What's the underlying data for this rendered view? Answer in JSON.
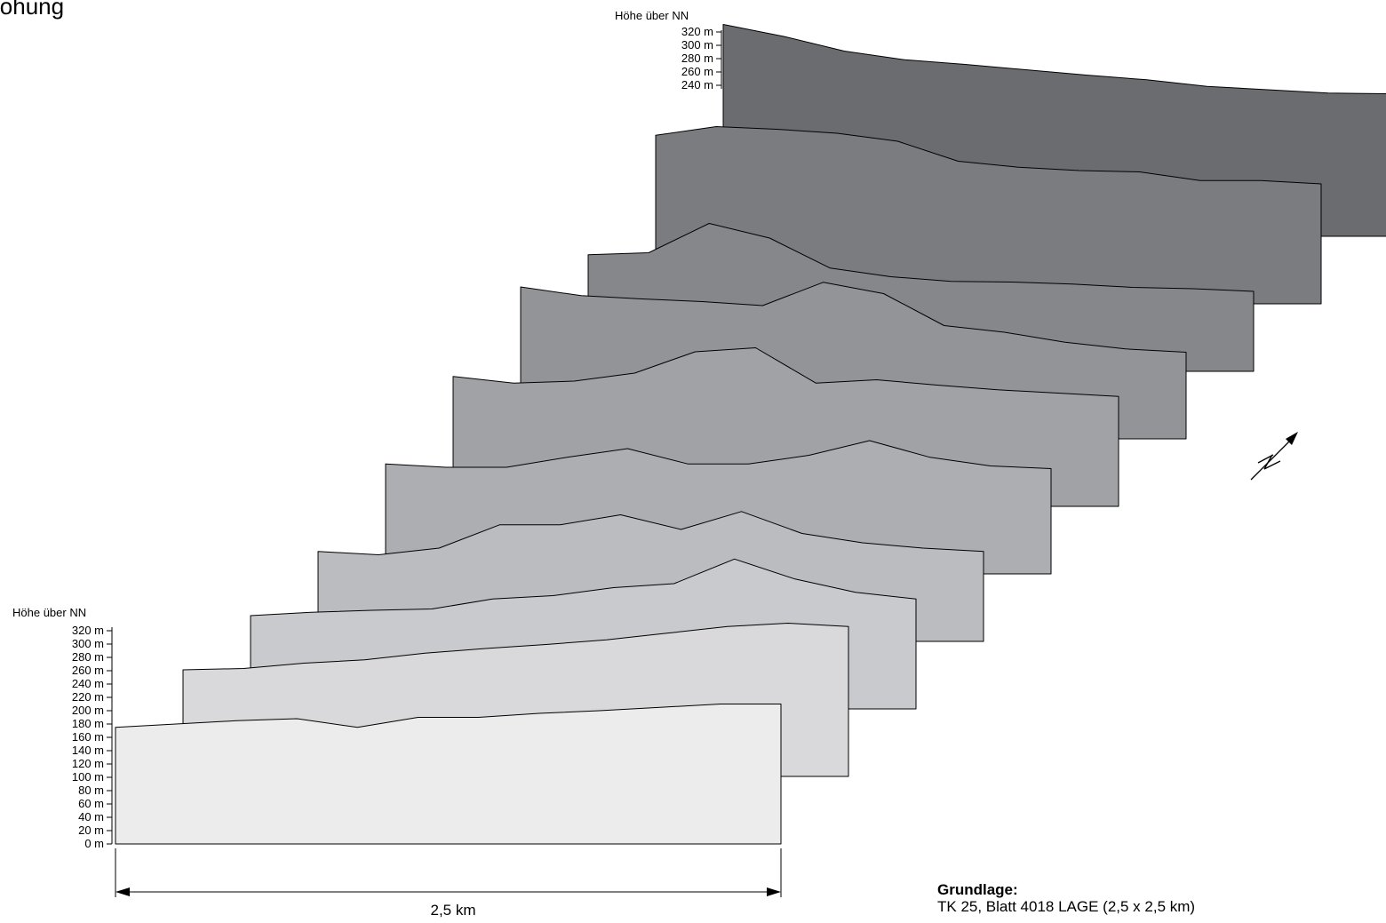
{
  "title_fragment": "lohung",
  "axis": {
    "label": "Höhe über NN",
    "ticks": [
      "320 m",
      "300 m",
      "280 m",
      "260 m",
      "240 m",
      "220 m",
      "200 m",
      "180 m",
      "160 m",
      "140 m",
      "120 m",
      "100 m",
      "80 m",
      "60 m",
      "40 m",
      "20 m",
      "0 m"
    ],
    "top_ticks": [
      "320 m",
      "300 m",
      "280 m",
      "260 m",
      "240 m"
    ]
  },
  "scale": {
    "label": "2,5 km"
  },
  "source": {
    "heading": "Grundlage:",
    "text": "TK 25, Blatt 4018 LAGE (2,5 x 2,5 km)"
  },
  "north_arrow": {
    "icon": "north-arrow-icon"
  },
  "profiles": [
    {
      "fill": "#6b6c70",
      "heights": [
        318,
        300,
        278,
        265,
        258,
        250,
        242,
        235,
        225,
        220,
        215,
        214
      ]
    },
    {
      "fill": "#7b7c80",
      "heights": [
        253,
        266,
        262,
        256,
        244,
        214,
        205,
        200,
        198,
        185,
        185,
        180
      ]
    },
    {
      "fill": "#86878b",
      "heights": [
        175,
        178,
        222,
        200,
        155,
        142,
        135,
        134,
        131,
        126,
        124,
        120
      ]
    },
    {
      "fill": "#939498",
      "heights": [
        228,
        215,
        210,
        206,
        200,
        235,
        218,
        170,
        160,
        145,
        135,
        130
      ]
    },
    {
      "fill": "#a1a2a6",
      "heights": [
        195,
        185,
        188,
        200,
        232,
        238,
        185,
        190,
        182,
        175,
        170,
        165
      ]
    },
    {
      "fill": "#adaeb2",
      "heights": [
        165,
        160,
        160,
        175,
        188,
        165,
        165,
        178,
        200,
        175,
        162,
        158
      ]
    },
    {
      "fill": "#bbbcbf",
      "heights": [
        135,
        130,
        140,
        175,
        175,
        190,
        168,
        195,
        162,
        148,
        140,
        135
      ]
    },
    {
      "fill": "#c9cacd",
      "heights": [
        140,
        145,
        148,
        150,
        165,
        170,
        182,
        188,
        225,
        195,
        175,
        165
      ]
    },
    {
      "fill": "#d9d9db",
      "heights": [
        160,
        162,
        170,
        175,
        185,
        192,
        198,
        205,
        215,
        225,
        230,
        225
      ]
    },
    {
      "fill": "#ececed",
      "heights": [
        175,
        180,
        185,
        188,
        175,
        190,
        190,
        196,
        200,
        205,
        210,
        210
      ]
    }
  ]
}
